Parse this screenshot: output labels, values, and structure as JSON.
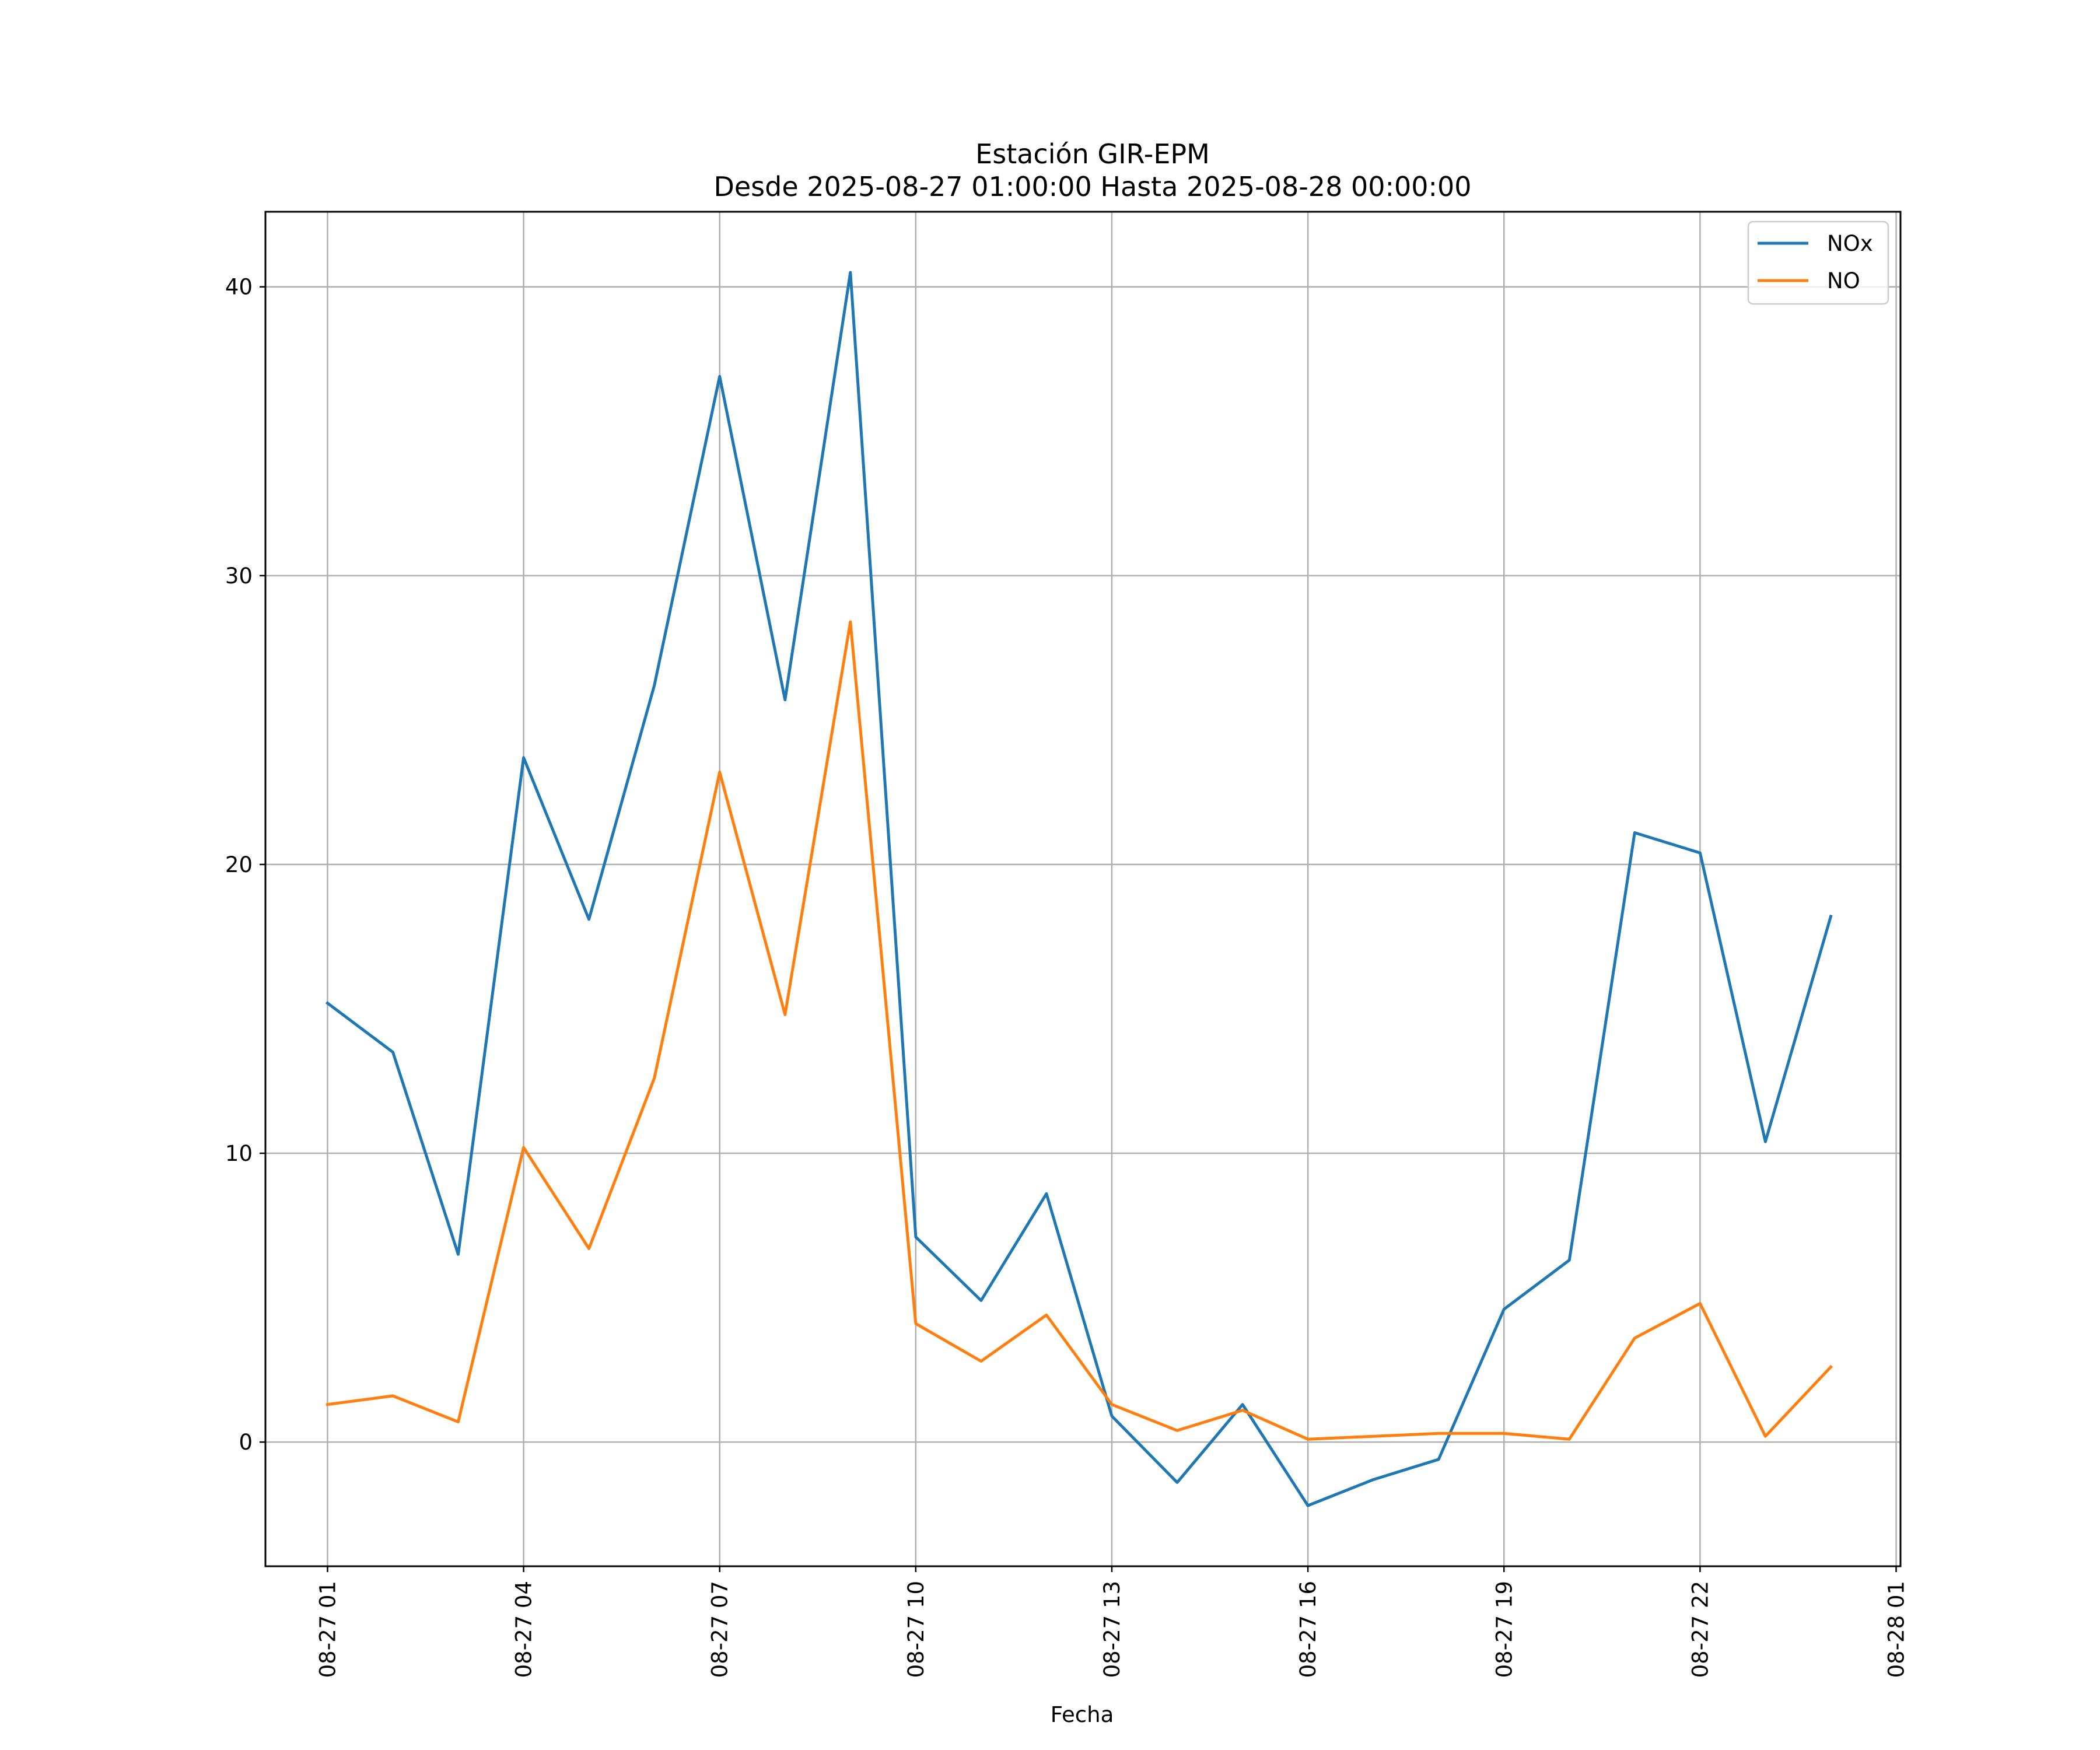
{
  "chart_data": {
    "type": "line",
    "title": "Estación GIR-EPM",
    "subtitle": "Desde 2025-08-27 01:00:00 Hasta 2025-08-28 00:00:00",
    "xlabel": "Fecha",
    "ylabel": "",
    "x": [
      "2025-08-27 01:00",
      "2025-08-27 02:00",
      "2025-08-27 03:00",
      "2025-08-27 04:00",
      "2025-08-27 05:00",
      "2025-08-27 06:00",
      "2025-08-27 07:00",
      "2025-08-27 08:00",
      "2025-08-27 09:00",
      "2025-08-27 10:00",
      "2025-08-27 11:00",
      "2025-08-27 12:00",
      "2025-08-27 13:00",
      "2025-08-27 14:00",
      "2025-08-27 15:00",
      "2025-08-27 16:00",
      "2025-08-27 17:00",
      "2025-08-27 18:00",
      "2025-08-27 19:00",
      "2025-08-27 20:00",
      "2025-08-27 21:00",
      "2025-08-27 22:00",
      "2025-08-27 23:00",
      "2025-08-28 00:00"
    ],
    "xticks": [
      "08-27 01",
      "08-27 04",
      "08-27 07",
      "08-27 10",
      "08-27 13",
      "08-27 16",
      "08-27 19",
      "08-27 22",
      "08-28 01"
    ],
    "yticks": [
      "0",
      "10",
      "20",
      "30",
      "40"
    ],
    "ylim": [
      -4.3,
      42.6
    ],
    "xlim": [
      "2025-08-27 00:03",
      "2025-08-28 01:04"
    ],
    "grid": true,
    "legend_position": "top-right",
    "series": [
      {
        "name": "NOx",
        "color": "#1f77b4",
        "values": [
          15.2,
          13.5,
          6.5,
          23.7,
          18.1,
          26.2,
          36.9,
          25.7,
          40.5,
          7.1,
          4.9,
          8.6,
          0.9,
          -1.4,
          1.3,
          -2.2,
          -1.3,
          -0.6,
          4.6,
          6.3,
          21.1,
          20.4,
          10.4,
          18.2
        ]
      },
      {
        "name": "NO",
        "color": "#ff7f0e",
        "values": [
          1.3,
          1.6,
          0.7,
          10.2,
          6.7,
          12.6,
          23.2,
          14.8,
          28.4,
          4.1,
          2.8,
          4.4,
          1.3,
          0.4,
          1.1,
          0.1,
          0.2,
          0.3,
          0.3,
          0.1,
          3.6,
          4.8,
          0.2,
          2.6
        ]
      }
    ]
  }
}
